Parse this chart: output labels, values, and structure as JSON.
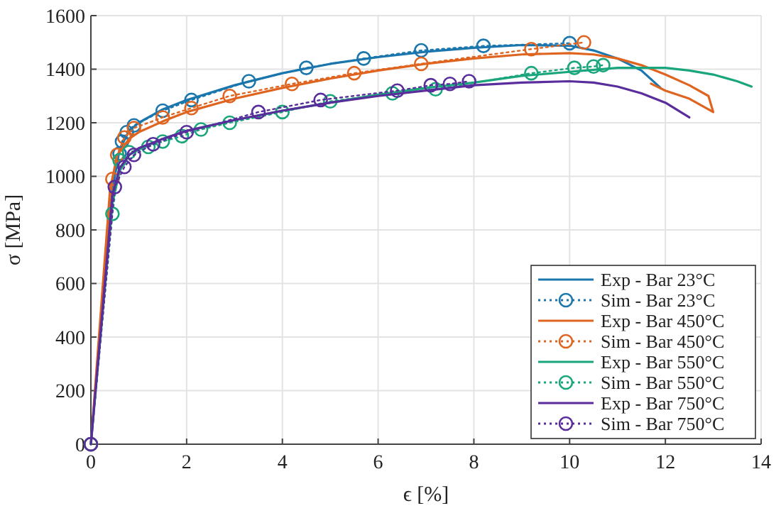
{
  "chart_data": {
    "type": "line",
    "xlabel": "ϵ [%]",
    "ylabel": "σ [MPa]",
    "xlim": [
      0,
      14
    ],
    "ylim": [
      0,
      1600
    ],
    "xticks": [
      0,
      2,
      4,
      6,
      8,
      10,
      12,
      14
    ],
    "yticks": [
      0,
      200,
      400,
      600,
      800,
      1000,
      1200,
      1400,
      1600
    ],
    "grid": true,
    "legend": "bottom right",
    "series": [
      {
        "name": "Exp - Bar 23°C",
        "color": "#1a76ad",
        "line_style": "solid",
        "marker": "none",
        "x": [
          0,
          0.45,
          0.6,
          0.8,
          1,
          1.5,
          2,
          3,
          4,
          5,
          6,
          7,
          8,
          9,
          10,
          10.5,
          11,
          11.5,
          11.9
        ],
        "values": [
          0,
          950,
          1100,
          1170,
          1200,
          1250,
          1285,
          1340,
          1385,
          1420,
          1445,
          1465,
          1480,
          1490,
          1488,
          1470,
          1440,
          1395,
          1330
        ]
      },
      {
        "name": "Sim - Bar 23°C",
        "color": "#1a76ad",
        "line_style": "dotted",
        "marker": "circle",
        "x": [
          0,
          0.5,
          0.6,
          0.65,
          0.75,
          0.9,
          1.5,
          2.1,
          3.3,
          4.5,
          5.7,
          6.9,
          8.2,
          10
        ],
        "values": [
          0,
          null,
          1085,
          1130,
          1165,
          1190,
          1245,
          1285,
          1355,
          1405,
          1440,
          1470,
          1487,
          1497
        ]
      },
      {
        "name": "Exp - Bar 450°C",
        "color": "#df6420",
        "line_style": "solid",
        "marker": "none",
        "x": [
          0,
          0.4,
          0.55,
          0.8,
          1,
          1.5,
          2,
          3,
          4,
          5,
          6,
          7,
          8,
          9,
          10,
          10.5,
          11,
          11.5,
          12,
          12.5,
          12.9,
          13,
          12.5,
          12,
          11.7
        ],
        "values": [
          0,
          950,
          1080,
          1140,
          1165,
          1205,
          1240,
          1290,
          1330,
          1365,
          1395,
          1420,
          1440,
          1455,
          1460,
          1455,
          1440,
          1415,
          1380,
          1340,
          1300,
          1240,
          1290,
          1320,
          1346
        ]
      },
      {
        "name": "Sim - Bar 450°C",
        "color": "#df6420",
        "line_style": "dotted",
        "marker": "circle",
        "x": [
          0,
          0.45,
          0.55,
          0.7,
          0.9,
          1.5,
          2.1,
          2.9,
          4.2,
          5.5,
          6.9,
          9.2,
          10.3
        ],
        "values": [
          0,
          990,
          1080,
          1145,
          1180,
          1220,
          1255,
          1300,
          1345,
          1385,
          1420,
          1475,
          1500
        ]
      },
      {
        "name": "Exp - Bar 550°C",
        "color": "#1aa67c",
        "line_style": "solid",
        "marker": "none",
        "x": [
          0,
          0.45,
          0.6,
          0.8,
          1,
          1.5,
          2,
          3,
          4,
          5,
          6,
          7,
          8,
          9,
          10,
          11,
          12,
          12.5,
          13,
          13.5,
          13.8
        ],
        "values": [
          0,
          900,
          1020,
          1080,
          1100,
          1140,
          1170,
          1210,
          1245,
          1275,
          1305,
          1330,
          1350,
          1375,
          1390,
          1405,
          1405,
          1395,
          1380,
          1355,
          1335
        ]
      },
      {
        "name": "Sim - Bar 550°C",
        "color": "#1aa67c",
        "line_style": "dotted",
        "marker": "circle",
        "x": [
          0,
          0.45,
          0.6,
          0.8,
          1.2,
          1.5,
          1.9,
          2.3,
          2.9,
          4,
          5,
          6.3,
          7.2,
          9.2,
          10.1,
          10.5,
          10.7
        ],
        "values": [
          0,
          860,
          1060,
          1090,
          1110,
          1130,
          1150,
          1175,
          1200,
          1240,
          1280,
          1310,
          1325,
          1385,
          1405,
          1410,
          1415
        ]
      },
      {
        "name": "Exp - Bar 750°C",
        "color": "#5a2d9c",
        "line_style": "solid",
        "marker": "none",
        "x": [
          0,
          0.45,
          0.6,
          0.8,
          1,
          1.5,
          2,
          3,
          4,
          5,
          6,
          7,
          8,
          9,
          10,
          10.5,
          11,
          11.5,
          12,
          12.5
        ],
        "values": [
          0,
          930,
          1030,
          1080,
          1105,
          1140,
          1170,
          1210,
          1245,
          1275,
          1300,
          1320,
          1340,
          1350,
          1355,
          1350,
          1335,
          1310,
          1275,
          1220
        ]
      },
      {
        "name": "Sim - Bar 750°C",
        "color": "#5a2d9c",
        "line_style": "dotted",
        "marker": "circle",
        "x": [
          0,
          0.5,
          0.7,
          0.9,
          1.3,
          2,
          3.5,
          4.8,
          6.4,
          7.1,
          7.5,
          7.9
        ],
        "values": [
          0,
          960,
          1035,
          1080,
          1120,
          1165,
          1240,
          1285,
          1320,
          1340,
          1345,
          1355
        ]
      }
    ]
  }
}
